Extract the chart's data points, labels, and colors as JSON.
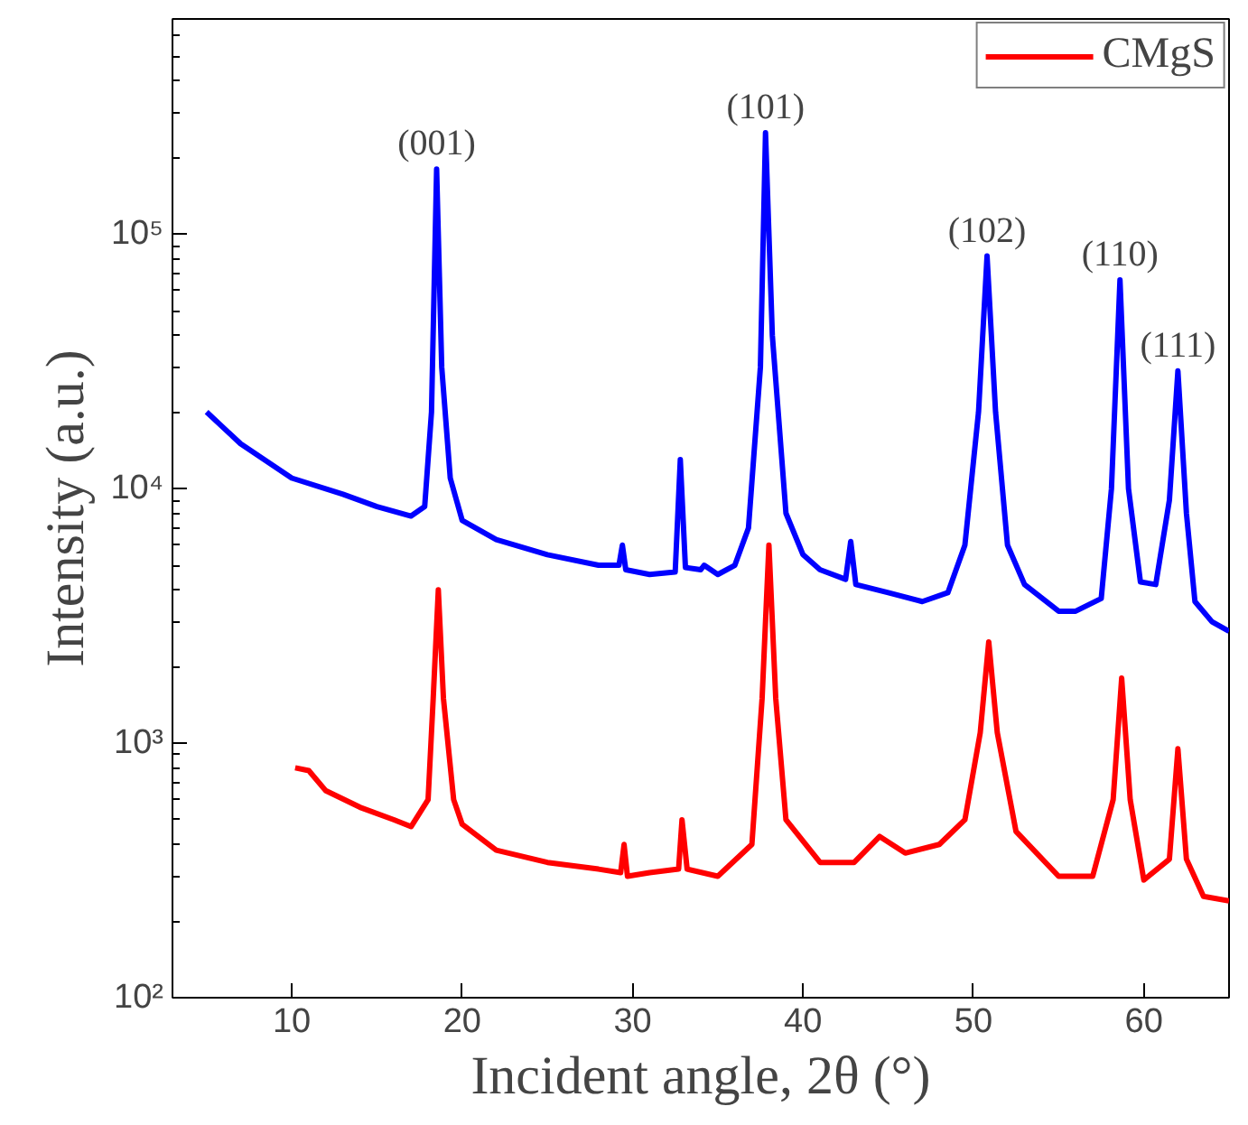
{
  "chart_data": {
    "type": "line",
    "xlabel": "Incident angle, 2θ (°)",
    "ylabel": "Intensity (a.u.)",
    "log": "y",
    "xlim": [
      3,
      65
    ],
    "ylim": [
      100,
      700000
    ],
    "xticks": [
      10,
      20,
      30,
      40,
      50,
      60
    ],
    "yticks": [
      {
        "value": 100,
        "label": "10²"
      },
      {
        "value": 1000,
        "label": "10³"
      },
      {
        "value": 10000,
        "label": "10⁴"
      },
      {
        "value": 100000,
        "label": "10⁵"
      }
    ],
    "grid": false,
    "legend": "top right",
    "line_style": "solid",
    "marker": "none",
    "annotations": [
      {
        "text": "(001)",
        "x": 18.5,
        "y": 180000
      },
      {
        "text": "(101)",
        "x": 37.8,
        "y": 250000
      },
      {
        "text": "(102)",
        "x": 50.8,
        "y": 82000
      },
      {
        "text": "(110)",
        "x": 58.6,
        "y": 66000
      },
      {
        "text": "(111)",
        "x": 62,
        "y": 29000
      }
    ],
    "series": [
      {
        "color": "#0000ff",
        "x": [
          5,
          7,
          10,
          13,
          15,
          17,
          17.8,
          18.2,
          18.5,
          18.8,
          19.3,
          20,
          22,
          25,
          28,
          29.2,
          29.4,
          29.6,
          31,
          32.5,
          32.8,
          33.1,
          34,
          34.2,
          35,
          36,
          36.8,
          37.5,
          37.8,
          38.2,
          39,
          40,
          41,
          42.5,
          42.8,
          43.1,
          45,
          47,
          48.5,
          49.5,
          50.3,
          50.8,
          51.3,
          52,
          53,
          55,
          56,
          57.5,
          58.1,
          58.6,
          59.1,
          59.8,
          60.7,
          61.5,
          62,
          62.5,
          63,
          64,
          65
        ],
        "values": [
          20000,
          15000,
          11000,
          9500,
          8500,
          7800,
          8500,
          20000,
          180000,
          30000,
          11000,
          7500,
          6300,
          5500,
          5000,
          5000,
          6000,
          4800,
          4600,
          4700,
          13000,
          4900,
          4800,
          5000,
          4600,
          5000,
          7000,
          30000,
          250000,
          40000,
          8000,
          5500,
          4800,
          4400,
          6200,
          4200,
          3900,
          3600,
          3900,
          6000,
          20000,
          82000,
          20000,
          6000,
          4200,
          3300,
          3300,
          3700,
          10000,
          66000,
          10000,
          4300,
          4200,
          9000,
          29000,
          8000,
          3600,
          3000,
          2750
        ]
      },
      {
        "name": "CMgS",
        "color": "#ff0000",
        "x": [
          10.2,
          11,
          12,
          14,
          16,
          17,
          18,
          18.3,
          18.6,
          18.9,
          19.5,
          20,
          22,
          25,
          28,
          29.3,
          29.5,
          29.7,
          31,
          32.7,
          32.9,
          33.2,
          35,
          37,
          37.6,
          38,
          38.4,
          39,
          41,
          43,
          44.5,
          46,
          48,
          49.5,
          50.4,
          50.9,
          51.4,
          52.5,
          55,
          57,
          58.2,
          58.7,
          59.2,
          60,
          61.5,
          62,
          62.5,
          63.5,
          65
        ],
        "values": [
          800,
          780,
          650,
          560,
          500,
          470,
          600,
          1500,
          4000,
          1500,
          600,
          480,
          380,
          340,
          320,
          310,
          400,
          300,
          310,
          320,
          500,
          320,
          300,
          400,
          1500,
          6000,
          1500,
          500,
          340,
          340,
          430,
          370,
          400,
          500,
          1100,
          2500,
          1100,
          450,
          300,
          300,
          600,
          1800,
          600,
          290,
          350,
          950,
          350,
          250,
          240
        ]
      }
    ]
  }
}
